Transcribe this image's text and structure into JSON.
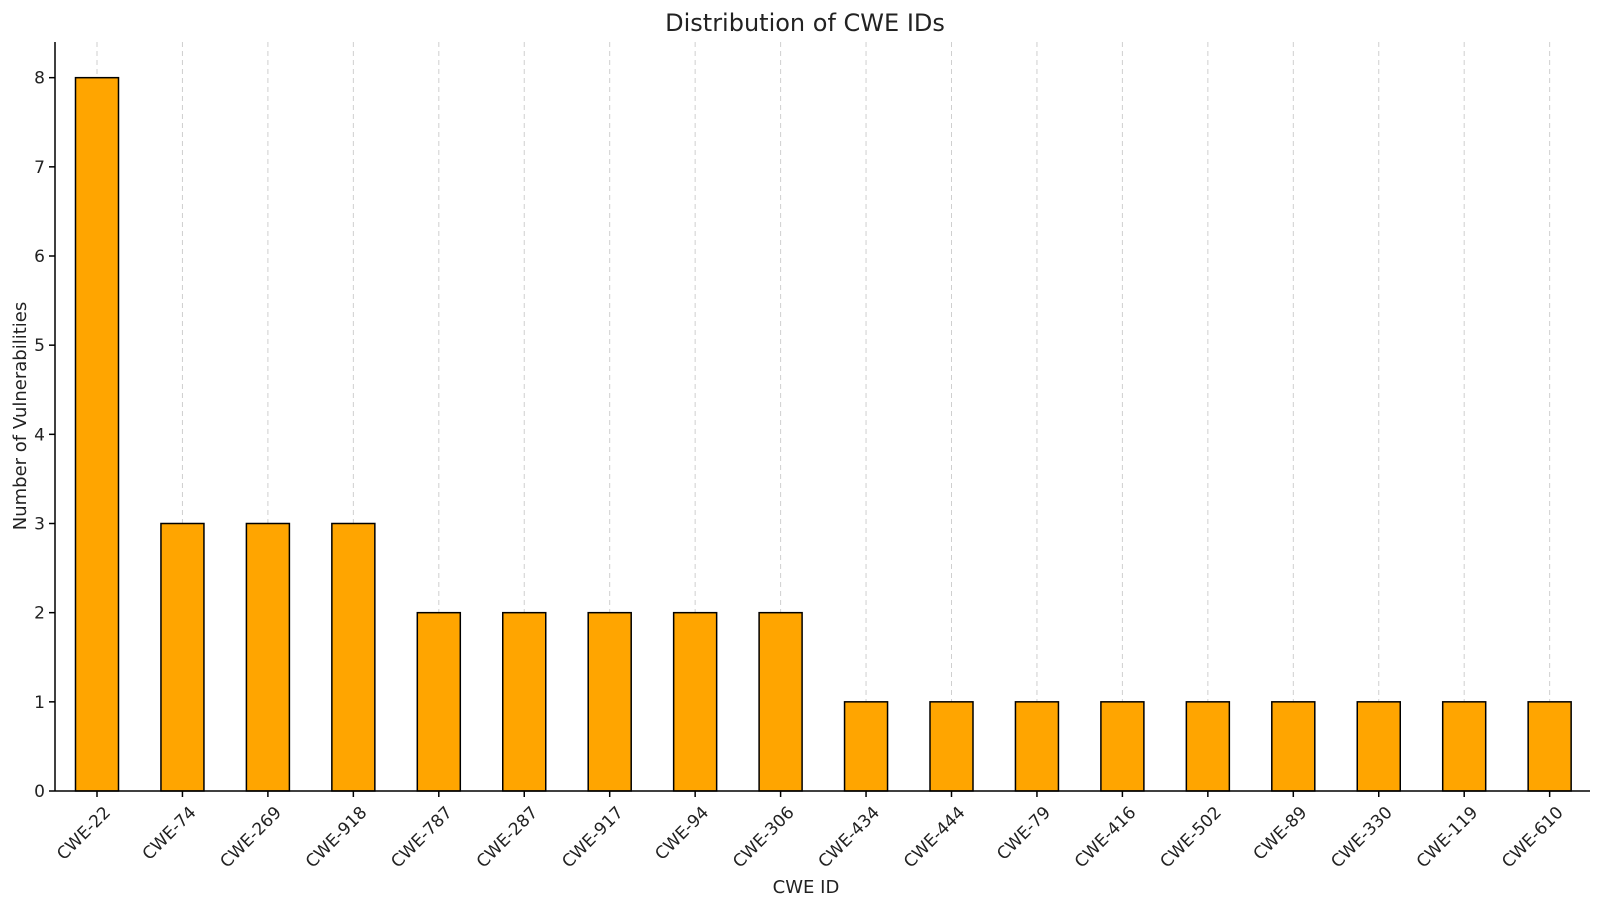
{
  "chart_data": {
    "type": "bar",
    "title": "Distribution of CWE IDs",
    "xlabel": "CWE ID",
    "ylabel": "Number of Vulnerabilities",
    "categories": [
      "CWE-22",
      "CWE-74",
      "CWE-269",
      "CWE-918",
      "CWE-787",
      "CWE-287",
      "CWE-917",
      "CWE-94",
      "CWE-306",
      "CWE-434",
      "CWE-444",
      "CWE-79",
      "CWE-416",
      "CWE-502",
      "CWE-89",
      "CWE-330",
      "CWE-119",
      "CWE-610"
    ],
    "values": [
      8,
      3,
      3,
      3,
      2,
      2,
      2,
      2,
      2,
      1,
      1,
      1,
      1,
      1,
      1,
      1,
      1,
      1
    ],
    "yticks": [
      0,
      1,
      2,
      3,
      4,
      5,
      6,
      7,
      8
    ],
    "ylim": [
      0,
      8.4
    ],
    "grid": "vertical dashed",
    "bar_color": "#FFA500",
    "legend": "none"
  }
}
